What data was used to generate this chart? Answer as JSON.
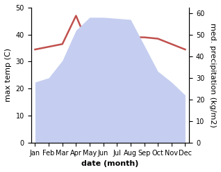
{
  "months": [
    "Jan",
    "Feb",
    "Mar",
    "Apr",
    "May",
    "Jun",
    "Jul",
    "Aug",
    "Sep",
    "Oct",
    "Nov",
    "Dec"
  ],
  "temperature": [
    34.5,
    35.5,
    36.5,
    47.0,
    35.0,
    37.0,
    38.5,
    39.0,
    39.0,
    38.5,
    36.5,
    34.5
  ],
  "precipitation": [
    28,
    30,
    38,
    52,
    58,
    58,
    57.5,
    57,
    45,
    33,
    28,
    22
  ],
  "temp_color": "#c0504d",
  "precip_fill_color": "#c5cef0",
  "ylim_left": [
    0,
    50
  ],
  "ylim_right": [
    0,
    62.5
  ],
  "ylabel_left": "max temp (C)",
  "ylabel_right": "med. precipitation (kg/m2)",
  "xlabel": "date (month)",
  "label_fontsize": 8,
  "tick_fontsize": 7
}
